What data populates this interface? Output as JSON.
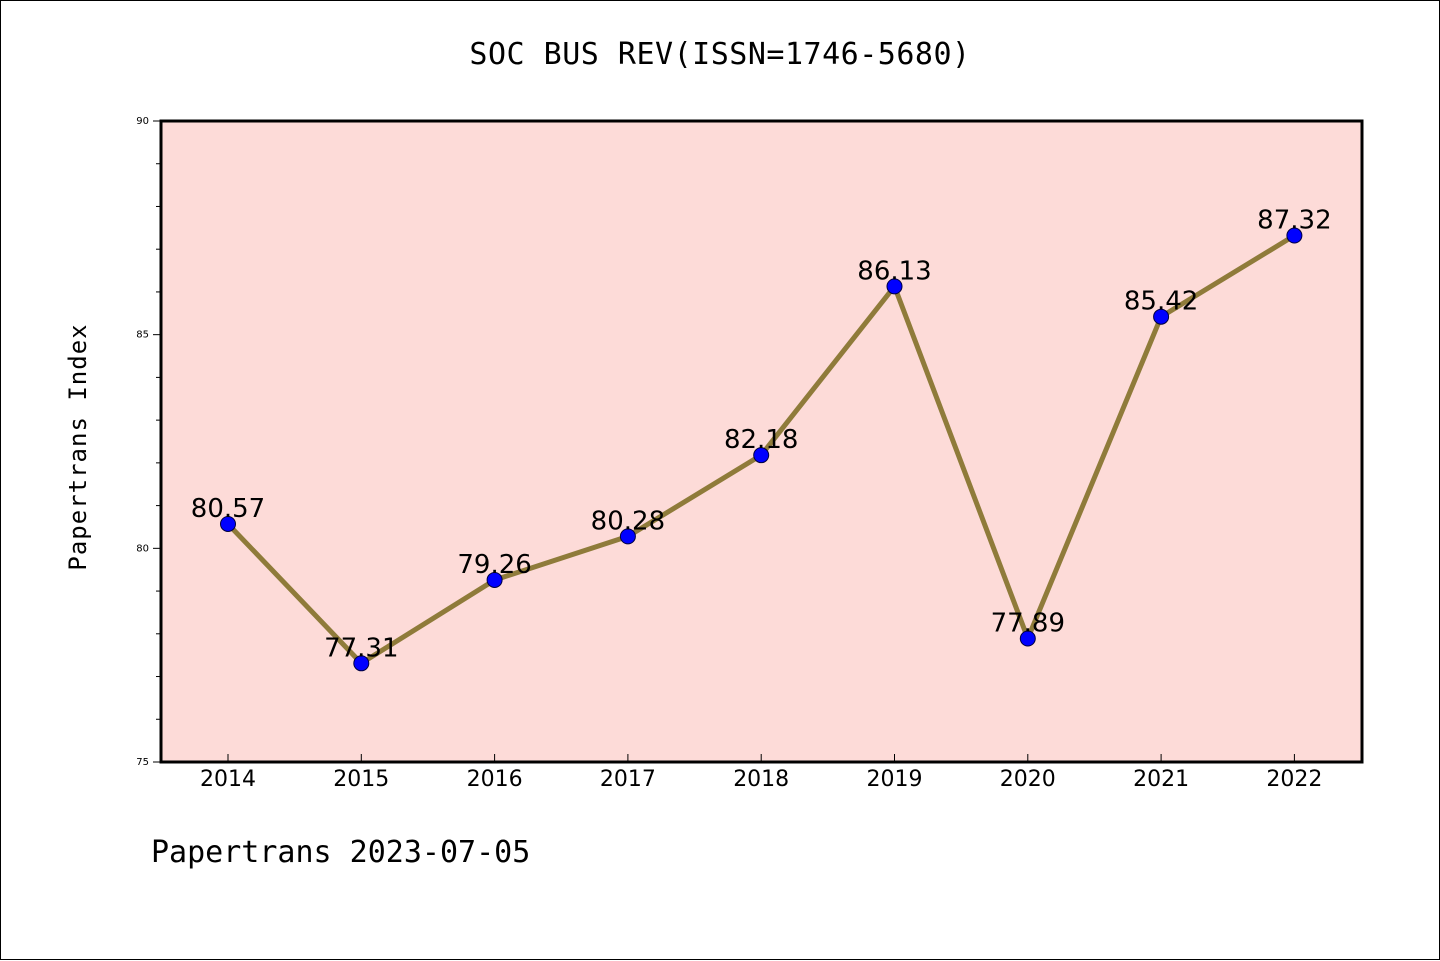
{
  "title": "SOC BUS REV(ISSN=1746-5680)",
  "footer": "Papertrans 2023-07-05",
  "colors": {
    "plot_background": "#fddbd8",
    "line": "#8f7b3a",
    "marker": "#0000ff"
  },
  "chart_data": {
    "type": "line",
    "title": "SOC BUS REV(ISSN=1746-5680)",
    "xlabel": "",
    "ylabel": "Papertrans Index",
    "categories": [
      "2014",
      "2015",
      "2016",
      "2017",
      "2018",
      "2019",
      "2020",
      "2021",
      "2022"
    ],
    "values": [
      80.57,
      77.31,
      79.26,
      80.28,
      82.18,
      86.13,
      77.89,
      85.42,
      87.32
    ],
    "data_labels": [
      "80.57",
      "77.31",
      "79.26",
      "80.28",
      "82.18",
      "86.13",
      "77.89",
      "85.42",
      "87.32"
    ],
    "ylim": [
      75,
      90
    ],
    "yticks": [
      "75",
      "80",
      "85",
      "90"
    ],
    "grid": false,
    "legend": "none"
  }
}
